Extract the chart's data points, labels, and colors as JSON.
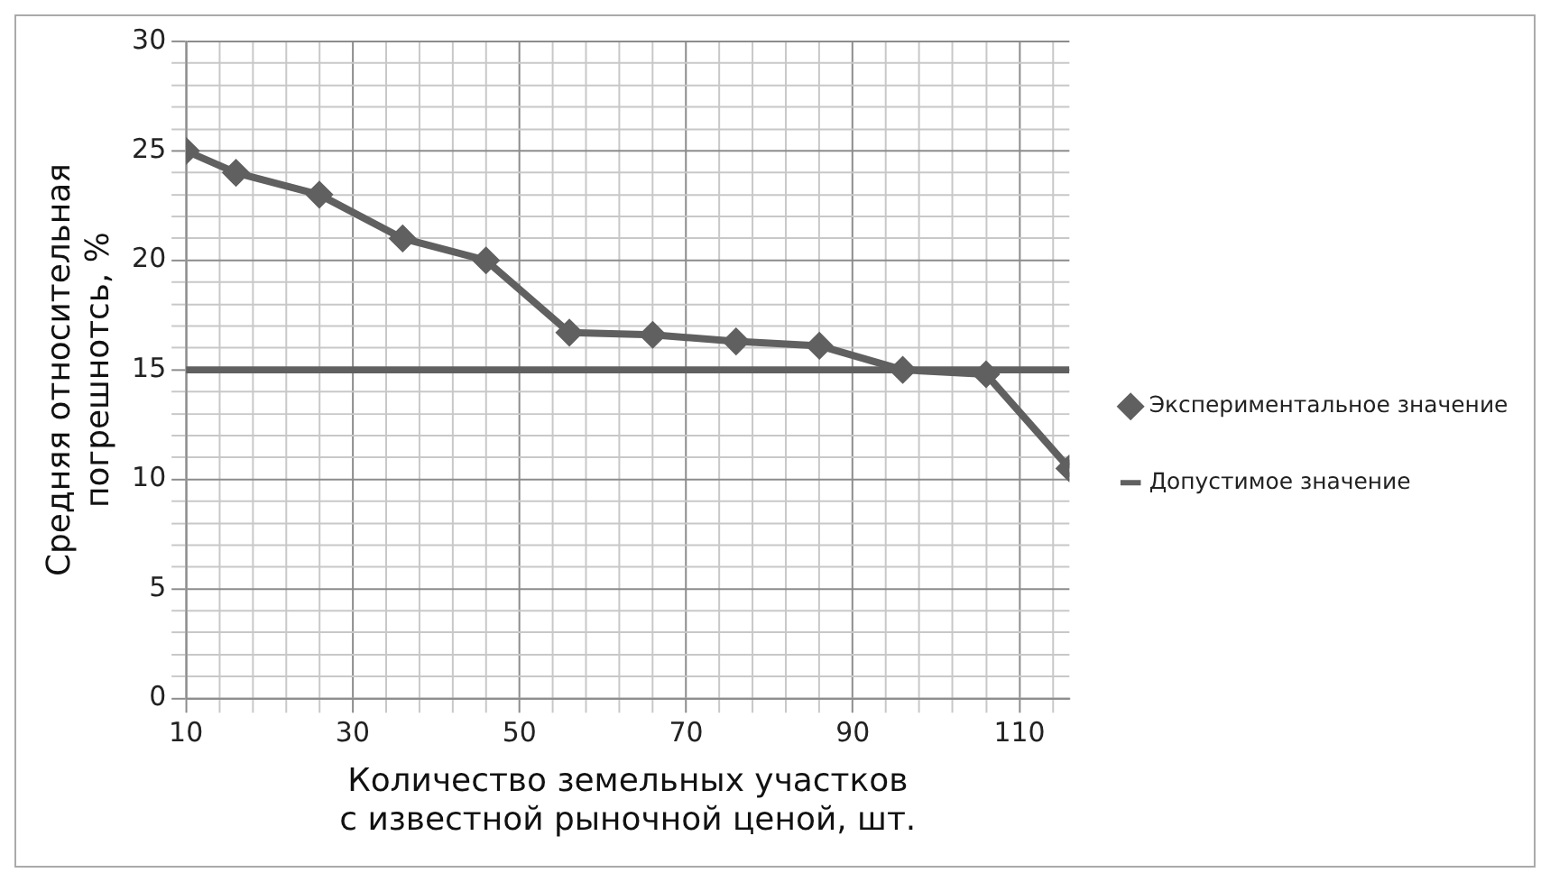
{
  "chart_data": {
    "type": "line",
    "xlabel": "Количество земельных участков\nс известной рыночной ценой, шт.",
    "ylabel": "Средняя относительная\nпогрешнотсь, %",
    "legend": "right",
    "grid": true,
    "xlim": [
      10,
      116
    ],
    "ylim": [
      0,
      30
    ],
    "xticks": [
      10,
      {
        "value": 14,
        "label": null
      },
      {
        "value": 18,
        "label": null
      },
      {
        "value": 22,
        "label": null
      },
      {
        "value": 26,
        "label": null
      },
      30,
      {
        "value": 34,
        "label": null
      },
      {
        "value": 38,
        "label": null
      },
      {
        "value": 42,
        "label": null
      },
      {
        "value": 46,
        "label": null
      },
      50,
      {
        "value": 54,
        "label": null
      },
      {
        "value": 58,
        "label": null
      },
      {
        "value": 62,
        "label": null
      },
      {
        "value": 66,
        "label": null
      },
      70,
      {
        "value": 74,
        "label": null
      },
      {
        "value": 78,
        "label": null
      },
      {
        "value": 82,
        "label": null
      },
      {
        "value": 86,
        "label": null
      },
      90,
      {
        "value": 94,
        "label": null
      },
      {
        "value": 98,
        "label": null
      },
      {
        "value": 102,
        "label": null
      },
      {
        "value": 106,
        "label": null
      },
      110,
      {
        "value": 114,
        "label": null
      }
    ],
    "yticks": [
      0,
      {
        "value": 1,
        "label": null
      },
      {
        "value": 2,
        "label": null
      },
      {
        "value": 3,
        "label": null
      },
      {
        "value": 4,
        "label": null
      },
      5,
      {
        "value": 6,
        "label": null
      },
      {
        "value": 7,
        "label": null
      },
      {
        "value": 8,
        "label": null
      },
      {
        "value": 9,
        "label": null
      },
      10,
      {
        "value": 11,
        "label": null
      },
      {
        "value": 12,
        "label": null
      },
      {
        "value": 13,
        "label": null
      },
      {
        "value": 14,
        "label": null
      },
      15,
      {
        "value": 16,
        "label": null
      },
      {
        "value": 17,
        "label": null
      },
      {
        "value": 18,
        "label": null
      },
      {
        "value": 19,
        "label": null
      },
      20,
      {
        "value": 21,
        "label": null
      },
      {
        "value": 22,
        "label": null
      },
      {
        "value": 23,
        "label": null
      },
      {
        "value": 24,
        "label": null
      },
      25,
      {
        "value": 26,
        "label": null
      },
      {
        "value": 27,
        "label": null
      },
      {
        "value": 28,
        "label": null
      },
      {
        "value": 29,
        "label": null
      },
      30
    ],
    "series": [
      {
        "name": "Экспериментальное значение",
        "color": "#606060",
        "marker": "diamond",
        "x": [
          10,
          16,
          26,
          36,
          46,
          56,
          66,
          76,
          86,
          96,
          106,
          116
        ],
        "values": [
          25,
          24,
          23,
          21,
          20,
          16.7,
          16.6,
          16.3,
          16.1,
          15,
          14.8,
          10.5
        ]
      },
      {
        "name": "Допустимое значение",
        "color": "#606060",
        "marker": "none",
        "x": [
          10,
          116
        ],
        "values": [
          15,
          15
        ]
      }
    ]
  }
}
